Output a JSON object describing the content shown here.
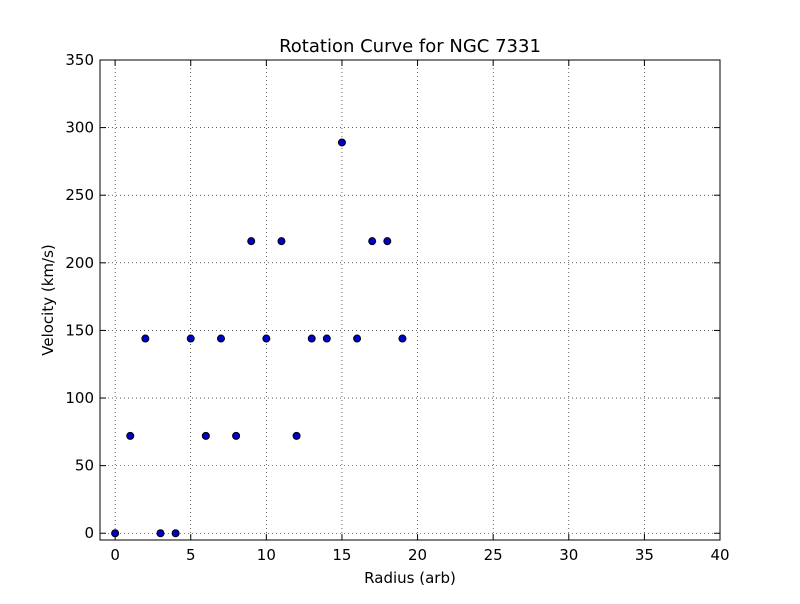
{
  "chart_data": {
    "type": "scatter",
    "title": "Rotation Curve for NGC 7331",
    "xlabel": "Radius (arb)",
    "ylabel": "Velocity (km/s)",
    "xlim": [
      -1,
      40
    ],
    "ylim": [
      -5,
      350
    ],
    "xticks": [
      0,
      5,
      10,
      15,
      20,
      25,
      30,
      35,
      40
    ],
    "yticks": [
      0,
      50,
      100,
      150,
      200,
      250,
      300,
      350
    ],
    "xtick_labels": [
      "0",
      "5",
      "10",
      "15",
      "20",
      "25",
      "30",
      "35",
      "40"
    ],
    "ytick_labels": [
      "0",
      "50",
      "100",
      "150",
      "200",
      "250",
      "300",
      "350"
    ],
    "grid": true,
    "legend": "none",
    "marker_color": "#0000cc",
    "marker_edge_color": "#000000",
    "x": [
      0,
      1,
      2,
      3,
      4,
      5,
      6,
      7,
      8,
      9,
      10,
      11,
      12,
      13,
      14,
      15,
      16,
      17,
      18,
      19
    ],
    "y": [
      0,
      72,
      144,
      0,
      0,
      144,
      72,
      144,
      72,
      216,
      144,
      216,
      72,
      144,
      144,
      289,
      144,
      216,
      216,
      144
    ]
  }
}
